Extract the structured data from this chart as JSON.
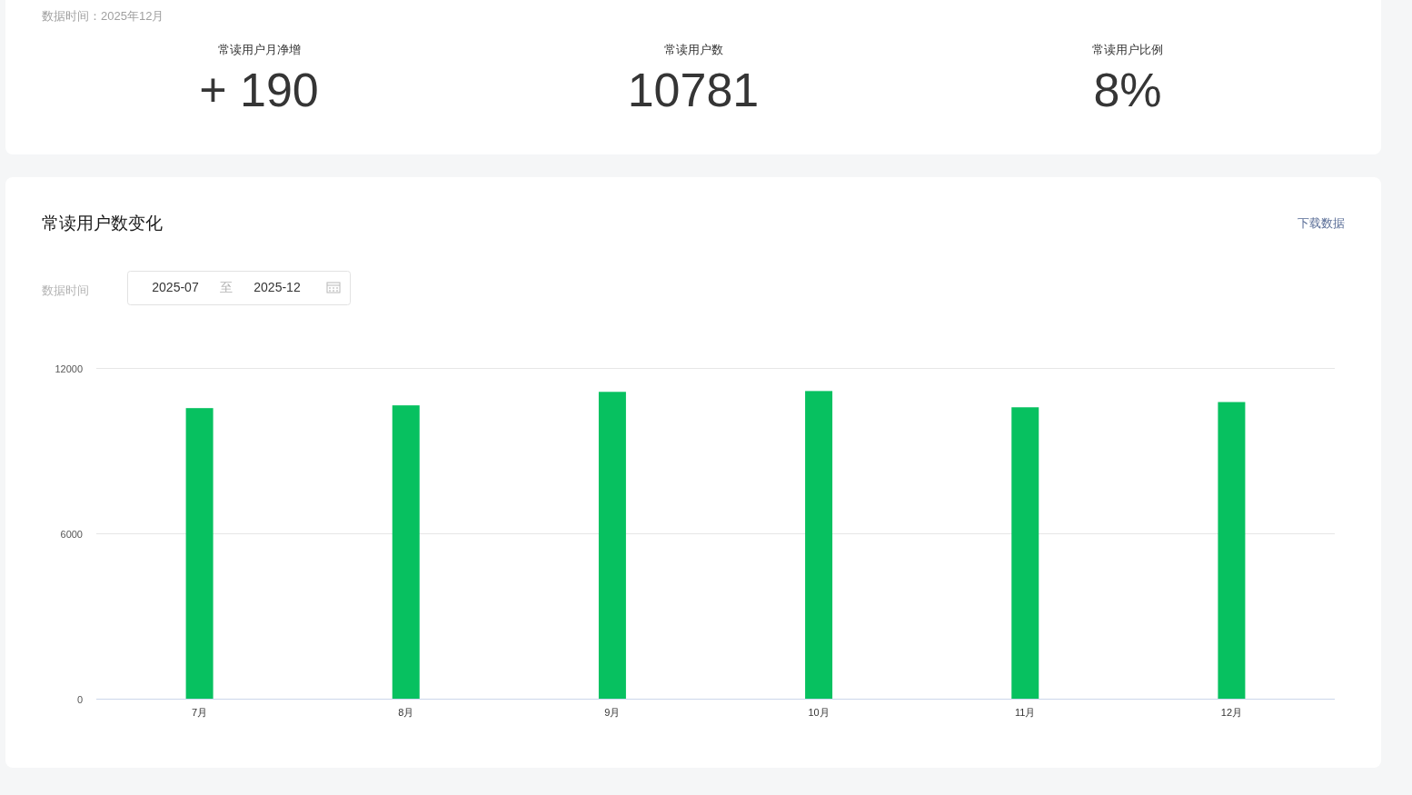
{
  "chart_data": [
    {
      "type": "other",
      "annotations": [
        "数据时间：2025年12月"
      ],
      "categories": [
        "常读用户月净增",
        "常读用户数",
        "常读用户比例"
      ],
      "value_labels": [
        "+ 190",
        "10781",
        "8%"
      ]
    },
    {
      "type": "bar",
      "title": "常读用户数变化",
      "annotations": [
        "下载数据",
        "数据时间",
        "2025-07",
        "至",
        "2025-12"
      ],
      "categories": [
        "7月",
        "8月",
        "9月",
        "10月",
        "11月",
        "12月"
      ],
      "values": [
        10560,
        10660,
        11150,
        11180,
        10590,
        10780
      ],
      "color": "#07c160",
      "ylim": [
        0,
        12000
      ],
      "yticks": [
        0,
        6000,
        12000
      ],
      "grid": "y"
    }
  ]
}
